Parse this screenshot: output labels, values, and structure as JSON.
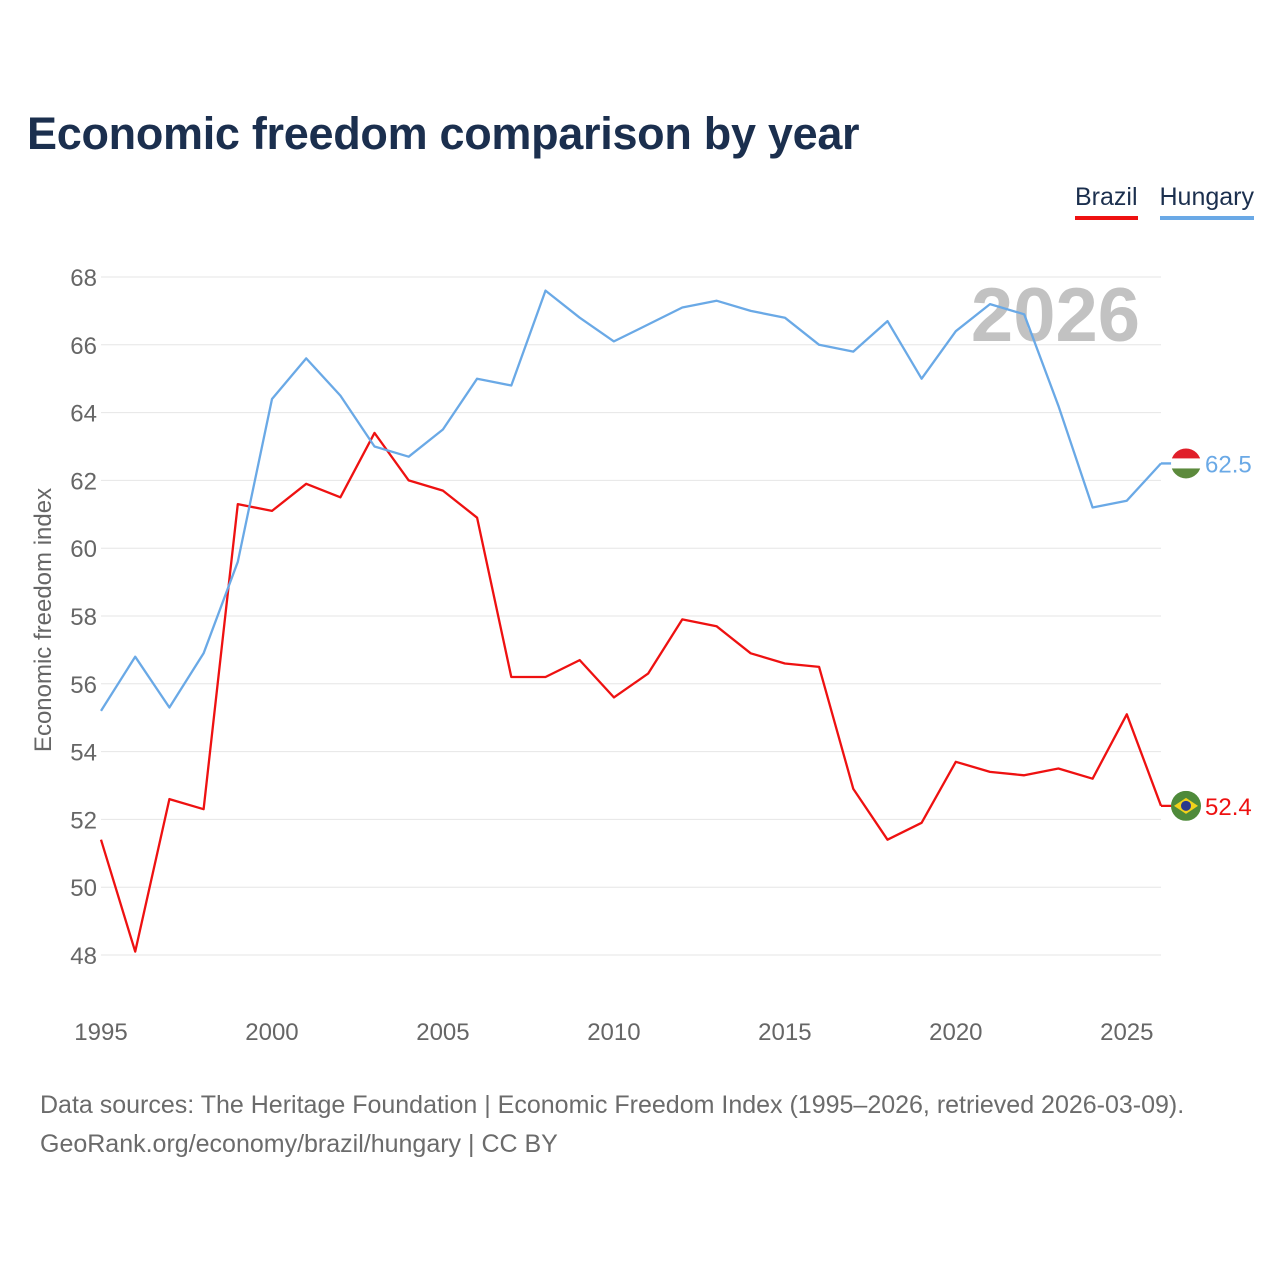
{
  "title": "Economic freedom comparison by year",
  "legend": [
    {
      "label": "Brazil",
      "color": "#ee1111"
    },
    {
      "label": "Hungary",
      "color": "#6aa9e6"
    }
  ],
  "chart_data": {
    "type": "line",
    "title": "Economic freedom comparison by year",
    "xlabel": "",
    "ylabel": "Economic freedom index",
    "ylim": [
      48,
      68
    ],
    "xlim": [
      1995,
      2026
    ],
    "yticks": [
      48,
      50,
      52,
      54,
      56,
      58,
      60,
      62,
      64,
      66,
      68
    ],
    "xticks": [
      1995,
      2000,
      2005,
      2010,
      2015,
      2020,
      2025
    ],
    "grid": true,
    "legend_position": "top-right",
    "watermark_year": "2026",
    "x": [
      1995,
      1996,
      1997,
      1998,
      1999,
      2000,
      2001,
      2002,
      2003,
      2004,
      2005,
      2006,
      2007,
      2008,
      2009,
      2010,
      2011,
      2012,
      2013,
      2014,
      2015,
      2016,
      2017,
      2018,
      2019,
      2020,
      2021,
      2022,
      2023,
      2024,
      2025,
      2026
    ],
    "series": [
      {
        "name": "Brazil",
        "color": "#ee1111",
        "end_label": "52.4",
        "flag": "brazil-flag",
        "values": [
          51.4,
          48.1,
          52.6,
          52.3,
          61.3,
          61.1,
          61.9,
          61.5,
          63.4,
          62.0,
          61.7,
          60.9,
          56.2,
          56.2,
          56.7,
          55.6,
          56.3,
          57.9,
          57.7,
          56.9,
          56.6,
          56.5,
          52.9,
          51.4,
          51.9,
          53.7,
          53.4,
          53.3,
          53.5,
          53.2,
          55.1,
          52.4
        ]
      },
      {
        "name": "Hungary",
        "color": "#6aa9e6",
        "end_label": "62.5",
        "flag": "hungary-flag",
        "values": [
          55.2,
          56.8,
          55.3,
          56.9,
          59.6,
          64.4,
          65.6,
          64.5,
          63.0,
          62.7,
          63.5,
          65.0,
          64.8,
          67.6,
          66.8,
          66.1,
          66.6,
          67.1,
          67.3,
          67.0,
          66.8,
          66.0,
          65.8,
          66.7,
          65.0,
          66.4,
          67.2,
          66.9,
          64.2,
          61.2,
          61.4,
          62.5
        ]
      }
    ]
  },
  "source": {
    "line1": "Data sources: The Heritage Foundation | Economic Freedom Index (1995–2026, retrieved 2026-03-09).",
    "line2": "GeoRank.org/economy/brazil/hungary | CC BY"
  }
}
